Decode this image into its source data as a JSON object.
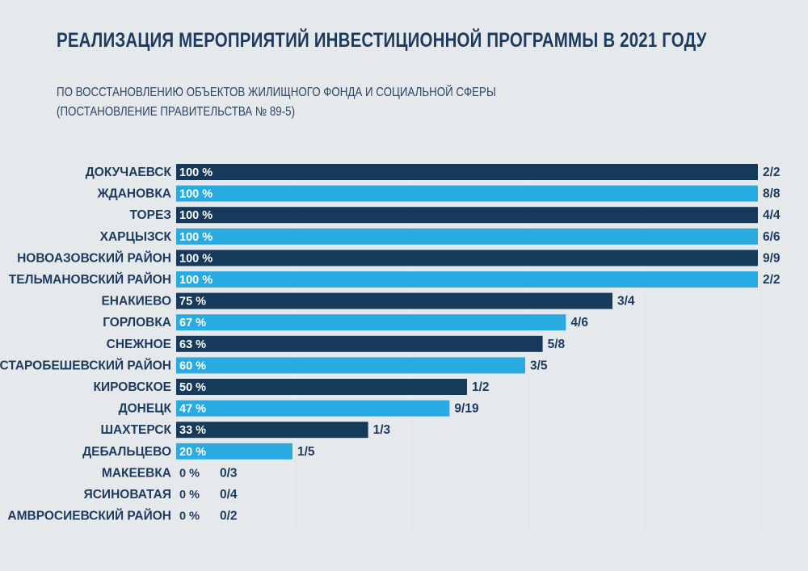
{
  "chart_data": {
    "type": "bar",
    "orientation": "horizontal",
    "title": "РЕАЛИЗАЦИЯ МЕРОПРИЯТИЙ ИНВЕСТИЦИОННОЙ ПРОГРАММЫ В 2021 ГОДУ",
    "subtitle_lines": [
      "ПО ВОССТАНОВЛЕНИЮ ОБЪЕКТОВ ЖИЛИЩНОГО ФОНДА И СОЦИАЛЬНОЙ СФЕРЫ",
      "(ПОСТАНОВЛЕНИЕ ПРАВИТЕЛЬСТВА № 89-5)"
    ],
    "xlim": [
      0,
      100
    ],
    "colors": [
      "#163a5c",
      "#29abe2"
    ],
    "categories": [
      "ДОКУЧАЕВСК",
      "ЖДАНОВКА",
      "ТОРЕЗ",
      "ХАРЦЫЗСК",
      "НОВОАЗОВСКИЙ РАЙОН",
      "ТЕЛЬМАНОВСКИЙ РАЙОН",
      "ЕНАКИЕВО",
      "ГОРЛОВКА",
      "СНЕЖНОЕ",
      "СТАРОБЕШЕВСКИЙ РАЙОН",
      "КИРОВСКОЕ",
      "ДОНЕЦК",
      "ШАХТЕРСК",
      "ДЕБАЛЬЦЕВО",
      "МАКЕЕВКА",
      "ЯСИНОВАТАЯ",
      "АМВРОСИЕВСКИЙ РАЙОН"
    ],
    "values": [
      100,
      100,
      100,
      100,
      100,
      100,
      75,
      67,
      63,
      60,
      50,
      47,
      33,
      20,
      0,
      0,
      0
    ],
    "value_labels": [
      "100 %",
      "100 %",
      "100 %",
      "100 %",
      "100 %",
      "100 %",
      "75 %",
      "67 %",
      "63 %",
      "60 %",
      "50 %",
      "47 %",
      "33 %",
      "20 %",
      "0 %",
      "0 %",
      "0 %"
    ],
    "fractions": [
      "2/2",
      "8/8",
      "4/4",
      "6/6",
      "9/9",
      "2/2",
      "3/4",
      "4/6",
      "5/8",
      "3/5",
      "1/2",
      "9/19",
      "1/3",
      "1/5",
      "0/3",
      "0/4",
      "0/2"
    ]
  }
}
